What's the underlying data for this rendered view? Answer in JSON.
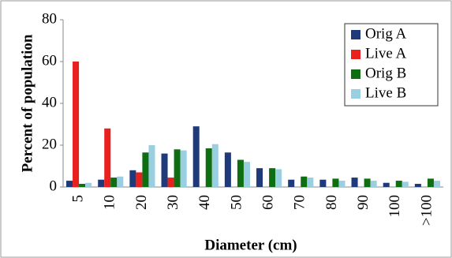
{
  "chart_data": {
    "type": "bar",
    "xlabel": "Diameter (cm)",
    "ylabel": "Percent of population",
    "categories": [
      "5",
      "10",
      "20",
      "30",
      "40",
      "50",
      "60",
      "70",
      "80",
      "90",
      "100",
      ">100"
    ],
    "series": [
      {
        "name": "Orig A",
        "color": "#1f3a7a",
        "values": [
          3,
          3.5,
          8,
          16,
          29,
          16.5,
          9,
          3.5,
          3.5,
          4.5,
          2,
          1.5
        ]
      },
      {
        "name": "Live A",
        "color": "#e8201e",
        "values": [
          60,
          28,
          7,
          4.5,
          0,
          0,
          0,
          0,
          0,
          0,
          0,
          0
        ]
      },
      {
        "name": "Orig B",
        "color": "#0f6e12",
        "values": [
          1.5,
          4.5,
          16.5,
          18,
          18.5,
          13,
          9,
          5,
          4,
          4,
          3,
          4
        ]
      },
      {
        "name": "Live B",
        "color": "#99cfe0",
        "values": [
          2,
          5,
          20,
          17.5,
          20.5,
          12,
          8.5,
          4.5,
          3,
          3,
          2.5,
          3
        ]
      }
    ],
    "ylim": [
      0,
      80
    ],
    "yticks": [
      0,
      20,
      40,
      60,
      80
    ],
    "legend": "upper right"
  }
}
